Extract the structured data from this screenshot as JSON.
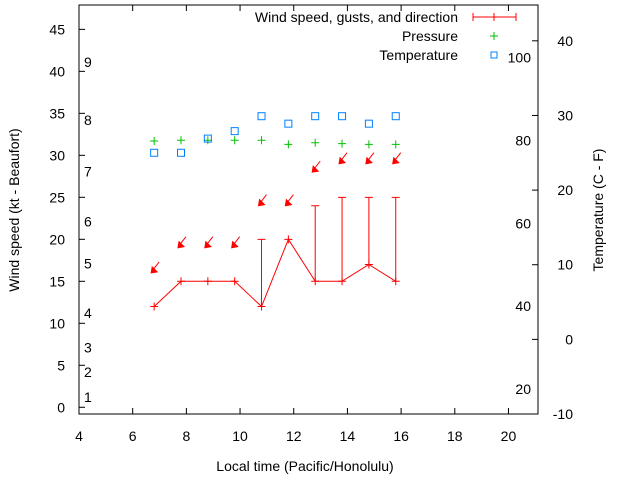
{
  "chart_data": {
    "type": "line",
    "title": "",
    "xlabel": "Local time (Pacific/Honolulu)",
    "ylabel": "Wind speed (kt - Beaufort)",
    "y2label": "Temperature (C - F)",
    "xlim": [
      4,
      21.1
    ],
    "ylim": [
      -0.8,
      47.9
    ],
    "y2lim": [
      -10,
      44.8
    ],
    "xticks": [
      4,
      6,
      8,
      10,
      12,
      14,
      16,
      18,
      20
    ],
    "yticks": [
      0,
      5,
      10,
      15,
      20,
      25,
      30,
      35,
      40,
      45
    ],
    "y2ticks": [
      -10,
      0,
      10,
      20,
      30,
      40
    ],
    "beaufort_labels": [
      {
        "label": "1",
        "kt": 1.2
      },
      {
        "label": "2",
        "kt": 4.2
      },
      {
        "label": "3",
        "kt": 7.1
      },
      {
        "label": "4",
        "kt": 11.2
      },
      {
        "label": "5",
        "kt": 17.1
      },
      {
        "label": "6",
        "kt": 22.1
      },
      {
        "label": "7",
        "kt": 28.1
      },
      {
        "label": "8",
        "kt": 34.2
      },
      {
        "label": "9",
        "kt": 41.1
      }
    ],
    "fahrenheit_labels": [
      {
        "label": "20",
        "f": 20
      },
      {
        "label": "40",
        "f": 40
      },
      {
        "label": "60",
        "f": 60
      },
      {
        "label": "80",
        "f": 80
      },
      {
        "label": "100",
        "f": 100
      }
    ],
    "x": [
      6.8,
      7.8,
      8.8,
      9.8,
      10.8,
      11.8,
      12.8,
      13.8,
      14.8,
      15.8
    ],
    "series": [
      {
        "name": "Wind speed, gusts, and direction",
        "color": "#ff0000",
        "values": [
          12,
          15,
          15,
          15,
          12,
          20,
          15,
          15,
          17,
          15
        ],
        "gusts": [
          null,
          null,
          null,
          null,
          20,
          null,
          24,
          25,
          25,
          25
        ],
        "arrow_level": [
          16,
          19,
          19,
          19,
          24,
          24,
          28,
          29,
          29,
          29
        ],
        "direction_from": "NE"
      },
      {
        "name": "Pressure",
        "color": "#00c000",
        "values": [
          31.7,
          31.8,
          31.8,
          31.8,
          31.8,
          31.3,
          31.5,
          31.4,
          31.3,
          31.3
        ]
      },
      {
        "name": "Temperature",
        "color": "#0080ff",
        "unit": "C",
        "values": [
          25.0,
          25.0,
          26.9,
          27.9,
          29.9,
          28.9,
          29.9,
          29.9,
          28.9,
          29.9
        ]
      }
    ],
    "legend_position": "top-right"
  }
}
